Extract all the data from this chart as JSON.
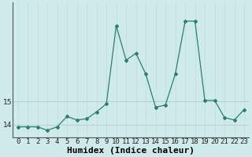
{
  "x": [
    0,
    1,
    2,
    3,
    4,
    5,
    6,
    7,
    8,
    9,
    10,
    11,
    12,
    13,
    14,
    15,
    16,
    17,
    18,
    19,
    20,
    21,
    22,
    23
  ],
  "y": [
    13.9,
    13.9,
    13.9,
    13.75,
    13.9,
    14.35,
    14.2,
    14.25,
    14.55,
    14.9,
    18.3,
    16.8,
    17.1,
    16.2,
    14.75,
    14.85,
    16.2,
    18.5,
    18.5,
    15.05,
    15.05,
    14.3,
    14.2,
    14.65
  ],
  "xlabel": "Humidex (Indice chaleur)",
  "ylabel": "",
  "title": "",
  "xlim": [
    -0.5,
    23.5
  ],
  "ylim": [
    13.45,
    19.3
  ],
  "yticks": [
    14,
    15
  ],
  "xticks": [
    0,
    1,
    2,
    3,
    4,
    5,
    6,
    7,
    8,
    9,
    10,
    11,
    12,
    13,
    14,
    15,
    16,
    17,
    18,
    19,
    20,
    21,
    22,
    23
  ],
  "line_color": "#2e7d6e",
  "marker_color": "#2e7d6e",
  "bg_color": "#ceeaea",
  "grid_color_v": "#c4dede",
  "grid_color_h": "#b8d0d0",
  "axis_color": "#555555",
  "tick_label_fontsize": 6.5,
  "xlabel_fontsize": 8.0
}
